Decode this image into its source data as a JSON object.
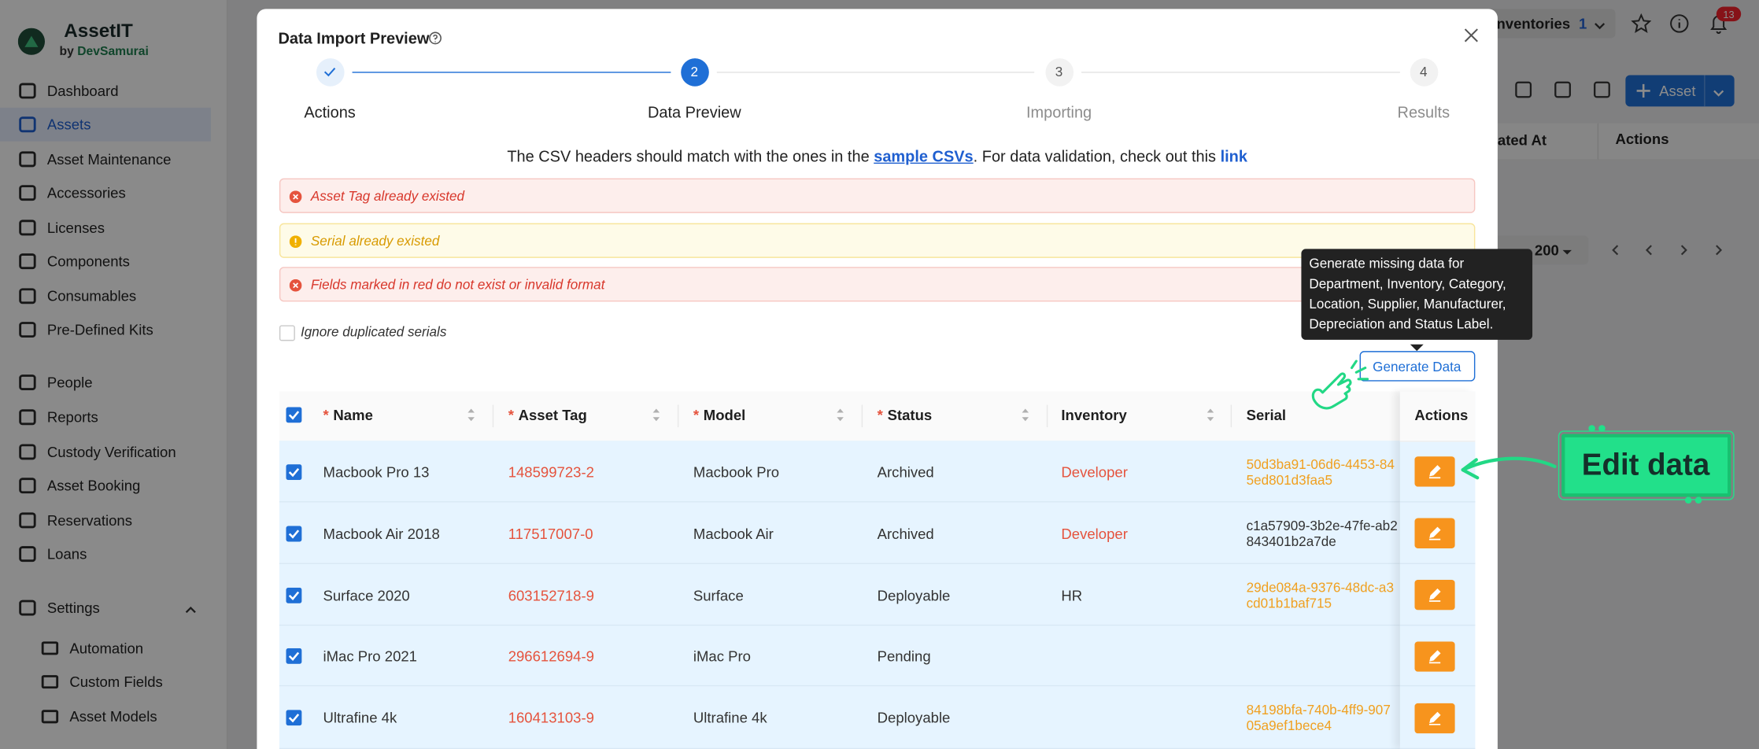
{
  "sidebar": {
    "brand": "AssetIT",
    "by": "by",
    "company": "DevSamurai",
    "nav": [
      "Dashboard",
      "Assets",
      "Asset Maintenance",
      "Accessories",
      "Licenses",
      "Components",
      "Consumables",
      "Pre-Defined Kits"
    ],
    "nav2": [
      "People",
      "Reports",
      "Custody Verification",
      "Asset Booking",
      "Reservations",
      "Loans"
    ],
    "settings": "Settings",
    "settings_items": [
      "Automation",
      "Custom Fields",
      "Asset Models"
    ],
    "active": 1
  },
  "background": {
    "inventories": "nventories",
    "inventory_count": "1",
    "notifications": "13",
    "add_asset": "Asset",
    "columns": [
      "ated At",
      "Actions"
    ],
    "page_size": "200"
  },
  "modal": {
    "title": "Data Import Preview",
    "steps": [
      {
        "label": "Actions",
        "state": "done"
      },
      {
        "number": "2",
        "label": "Data Preview",
        "state": "current"
      },
      {
        "number": "3",
        "label": "Importing",
        "state": "pending"
      },
      {
        "number": "4",
        "label": "Results",
        "state": "pending"
      }
    ],
    "info": {
      "text_1": "The CSV headers should match with the ones in the ",
      "link_1": "sample CSVs",
      "text_2": ". For data validation, check out this ",
      "link_2": "link"
    },
    "alerts": [
      {
        "level": "error",
        "text": "Asset Tag already existed"
      },
      {
        "level": "warning",
        "text": "Serial already existed"
      },
      {
        "level": "error",
        "text": "Fields marked in red do not exist or invalid format"
      }
    ],
    "ignore_duplicates": {
      "label": "Ignore duplicated serials",
      "checked": false
    },
    "generate_button": "Generate Data",
    "tooltip": [
      "Generate missing data for",
      "Department, Inventory, Category,",
      "Location, Supplier, Manufacturer,",
      "Depreciation and Status Label."
    ],
    "table": {
      "required_mark": "*",
      "columns": [
        {
          "label": "Name",
          "required": true
        },
        {
          "label": "Asset Tag",
          "required": true
        },
        {
          "label": "Model",
          "required": true
        },
        {
          "label": "Status",
          "required": true
        },
        {
          "label": "Inventory"
        },
        {
          "label": "Serial"
        },
        {
          "label": "Actions"
        }
      ],
      "rows": [
        {
          "name": "Macbook Pro 13",
          "asset_tag": "148599723-2",
          "model": "Macbook Pro",
          "status": "Archived",
          "inventory": "Developer",
          "inventory_invalid": true,
          "serial": [
            "50d3ba91-06d6-4453-84",
            "5ed801d3faa5"
          ],
          "serial_duplicate": true
        },
        {
          "name": "Macbook Air 2018",
          "asset_tag": "117517007-0",
          "model": "Macbook Air",
          "status": "Archived",
          "inventory": "Developer",
          "inventory_invalid": true,
          "serial": [
            "c1a57909-3b2e-47fe-ab2",
            "843401b2a7de"
          ],
          "serial_duplicate": false
        },
        {
          "name": "Surface 2020",
          "asset_tag": "603152718-9",
          "model": "Surface",
          "status": "Deployable",
          "inventory": "HR",
          "inventory_invalid": false,
          "serial": [
            "29de084a-9376-48dc-a3",
            "cd01b1baf715"
          ],
          "serial_duplicate": true
        },
        {
          "name": "iMac Pro 2021",
          "asset_tag": "296612694-9",
          "model": "iMac Pro",
          "status": "Pending",
          "inventory": null,
          "inventory_invalid": false,
          "serial": null,
          "serial_duplicate": false
        },
        {
          "name": "Ultrafine 4k",
          "asset_tag": "160413103-9",
          "model": "Ultrafine 4k",
          "status": "Deployable",
          "inventory": null,
          "inventory_invalid": false,
          "serial": [
            "84198bfa-740b-4ff9-907",
            "05a9ef1bece4"
          ],
          "serial_duplicate": true
        }
      ]
    }
  },
  "annotation": "Edit data"
}
